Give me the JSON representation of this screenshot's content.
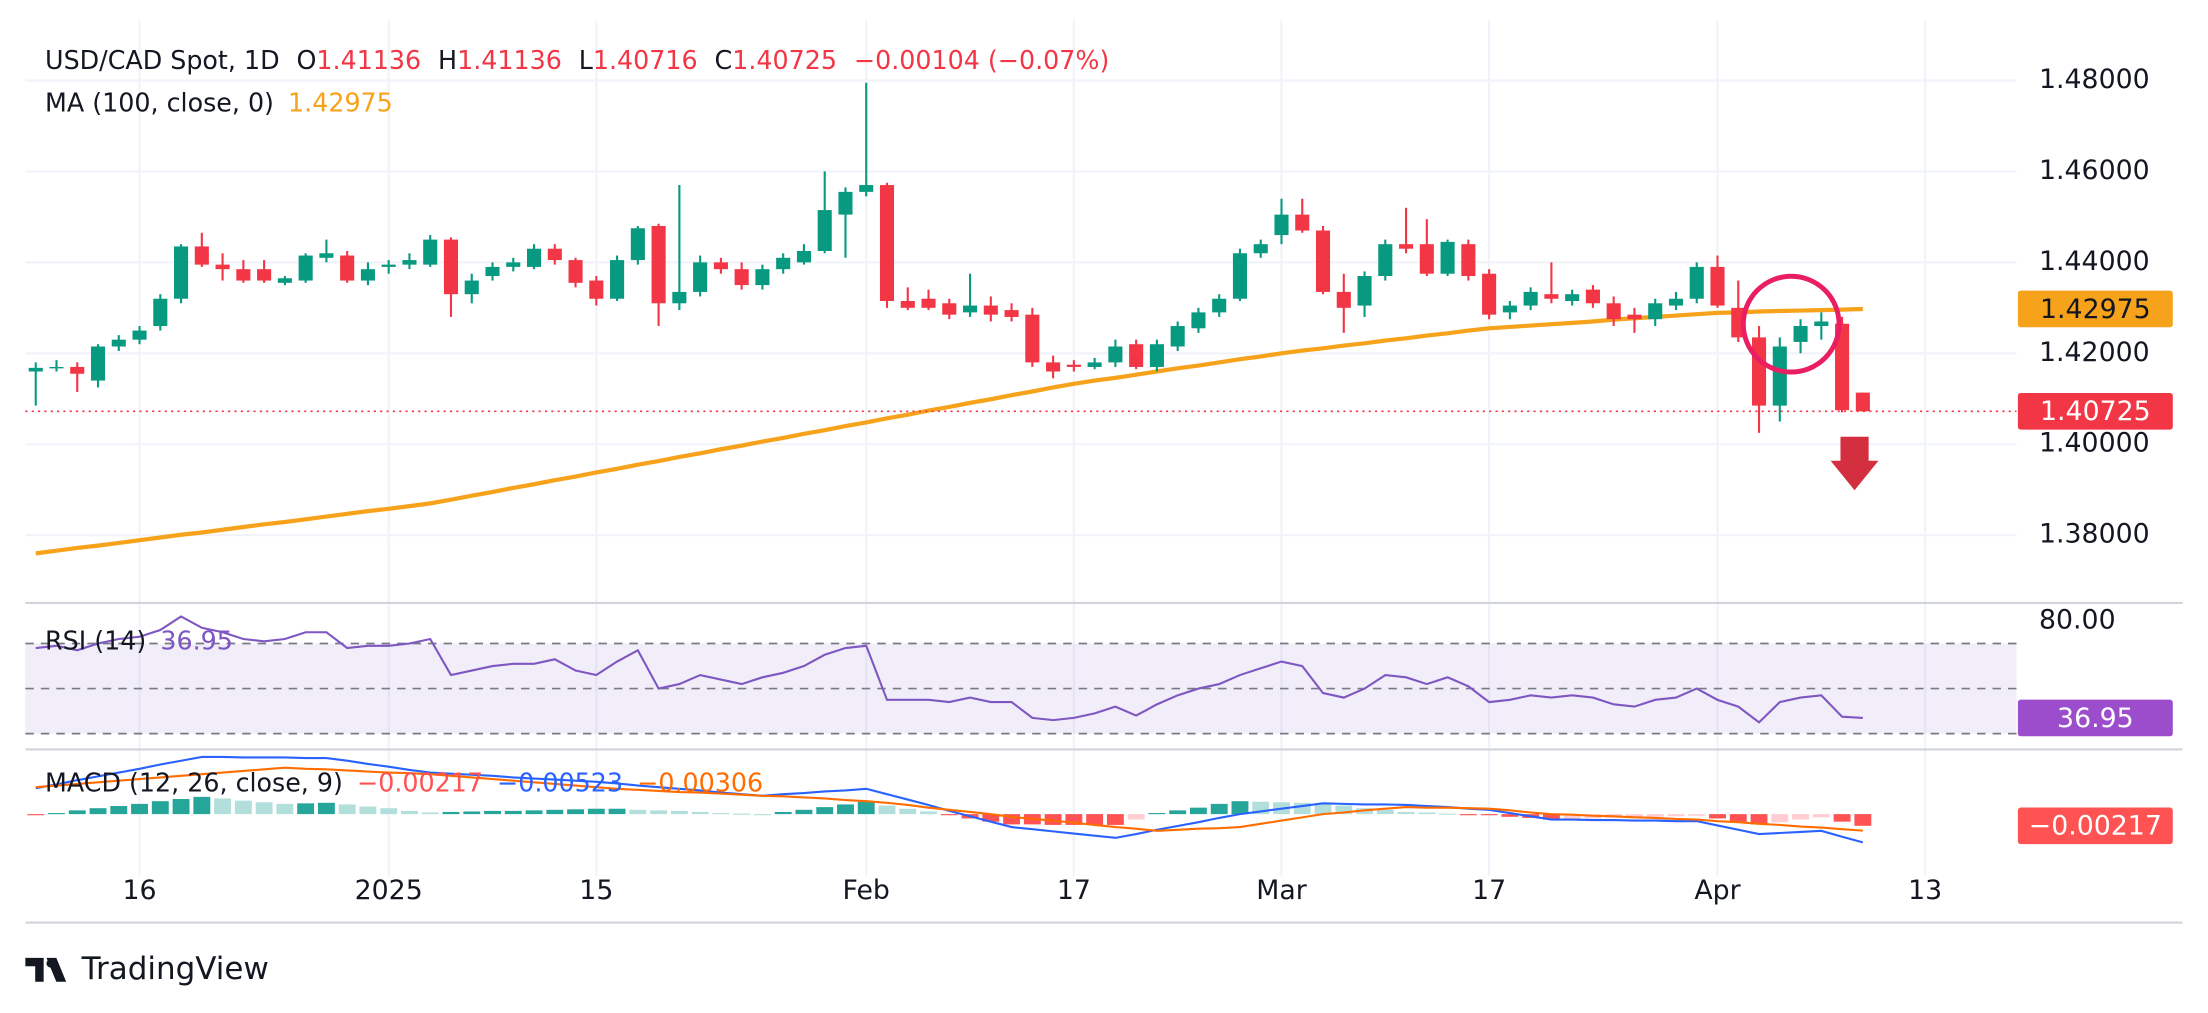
{
  "chart_data": [
    {
      "type": "candlestick",
      "title": "USD/CAD Spot, 1D",
      "ohlc_labels": [
        "O",
        "H",
        "L",
        "C"
      ],
      "change_label": "−0.00104 (−0.07%)",
      "up_color": "#089981",
      "down_color": "#f23645",
      "open": [
        1.416,
        1.4168,
        1.417,
        1.414,
        1.4215,
        1.423,
        1.426,
        1.432,
        1.4435,
        1.4395,
        1.4385,
        1.4385,
        1.4355,
        1.436,
        1.441,
        1.4415,
        1.436,
        1.439,
        1.4395,
        1.4395,
        1.445,
        1.433,
        1.437,
        1.439,
        1.439,
        1.443,
        1.4405,
        1.436,
        1.432,
        1.4405,
        1.448,
        1.431,
        1.4335,
        1.44,
        1.4385,
        1.435,
        1.4385,
        1.44,
        1.4425,
        1.4505,
        1.4555,
        1.457,
        1.4315,
        1.432,
        1.431,
        1.429,
        1.4305,
        1.4295,
        1.4285,
        1.418,
        1.4175,
        1.417,
        1.418,
        1.422,
        1.417,
        1.4215,
        1.4255,
        1.429,
        1.432,
        1.442,
        1.446,
        1.4505,
        1.447,
        1.4335,
        1.4305,
        1.437,
        1.444,
        1.444,
        1.4375,
        1.444,
        1.4375,
        1.429,
        1.4305,
        1.433,
        1.4315,
        1.434,
        1.431,
        1.4285,
        1.4275,
        1.4305,
        1.432,
        1.439,
        1.43,
        1.4235,
        1.4085,
        1.4225,
        1.426,
        1.4265,
        1.41136
      ],
      "high": [
        1.418,
        1.4185,
        1.418,
        1.422,
        1.424,
        1.426,
        1.433,
        1.444,
        1.4465,
        1.442,
        1.4405,
        1.4405,
        1.437,
        1.442,
        1.445,
        1.4425,
        1.44,
        1.4405,
        1.442,
        1.446,
        1.4455,
        1.4375,
        1.44,
        1.441,
        1.444,
        1.444,
        1.441,
        1.437,
        1.4415,
        1.448,
        1.4485,
        1.457,
        1.4415,
        1.441,
        1.44,
        1.4395,
        1.442,
        1.444,
        1.46,
        1.4565,
        1.4795,
        1.4575,
        1.4345,
        1.434,
        1.432,
        1.4375,
        1.4325,
        1.431,
        1.43,
        1.4195,
        1.4185,
        1.419,
        1.423,
        1.423,
        1.423,
        1.427,
        1.43,
        1.433,
        1.443,
        1.445,
        1.454,
        1.454,
        1.448,
        1.4375,
        1.438,
        1.445,
        1.452,
        1.4495,
        1.445,
        1.445,
        1.4385,
        1.4315,
        1.4345,
        1.44,
        1.434,
        1.435,
        1.4325,
        1.43,
        1.432,
        1.4335,
        1.44,
        1.4415,
        1.436,
        1.426,
        1.4235,
        1.4275,
        1.429,
        1.428,
        1.41136
      ],
      "low": [
        1.4085,
        1.416,
        1.4115,
        1.4125,
        1.4205,
        1.422,
        1.425,
        1.431,
        1.439,
        1.436,
        1.4355,
        1.4355,
        1.435,
        1.4355,
        1.44,
        1.4355,
        1.435,
        1.4375,
        1.4385,
        1.439,
        1.428,
        1.431,
        1.436,
        1.438,
        1.4385,
        1.4395,
        1.4345,
        1.4305,
        1.4315,
        1.4395,
        1.426,
        1.4295,
        1.4325,
        1.4375,
        1.434,
        1.434,
        1.4375,
        1.4395,
        1.442,
        1.441,
        1.4545,
        1.43,
        1.4295,
        1.4295,
        1.4275,
        1.428,
        1.427,
        1.427,
        1.417,
        1.4145,
        1.416,
        1.4165,
        1.417,
        1.4165,
        1.416,
        1.4205,
        1.4245,
        1.428,
        1.4315,
        1.441,
        1.444,
        1.4465,
        1.433,
        1.4245,
        1.428,
        1.436,
        1.442,
        1.437,
        1.437,
        1.436,
        1.4275,
        1.4275,
        1.4295,
        1.431,
        1.4305,
        1.43,
        1.426,
        1.4245,
        1.426,
        1.4295,
        1.431,
        1.43,
        1.4225,
        1.4025,
        1.405,
        1.42,
        1.423,
        1.407,
        1.40716
      ],
      "close": [
        1.4168,
        1.417,
        1.4155,
        1.4215,
        1.423,
        1.425,
        1.432,
        1.4435,
        1.4395,
        1.4385,
        1.436,
        1.436,
        1.4365,
        1.4415,
        1.442,
        1.436,
        1.4385,
        1.4395,
        1.4405,
        1.445,
        1.433,
        1.436,
        1.439,
        1.44,
        1.443,
        1.4405,
        1.4355,
        1.432,
        1.4405,
        1.4475,
        1.431,
        1.4335,
        1.44,
        1.4385,
        1.435,
        1.4385,
        1.441,
        1.4425,
        1.4515,
        1.4555,
        1.457,
        1.4315,
        1.43,
        1.43,
        1.4285,
        1.4305,
        1.4285,
        1.428,
        1.418,
        1.416,
        1.417,
        1.418,
        1.4215,
        1.417,
        1.422,
        1.426,
        1.429,
        1.432,
        1.442,
        1.444,
        1.4505,
        1.447,
        1.4335,
        1.43,
        1.437,
        1.444,
        1.443,
        1.4375,
        1.4445,
        1.437,
        1.4285,
        1.4305,
        1.4335,
        1.432,
        1.433,
        1.431,
        1.4275,
        1.4275,
        1.431,
        1.432,
        1.439,
        1.4305,
        1.4235,
        1.4085,
        1.4215,
        1.426,
        1.427,
        1.4075,
        1.40725
      ],
      "ma": {
        "name": "MA (100, close, 0)",
        "color": "#f7a21b",
        "values": [
          1.376,
          1.3766,
          1.3772,
          1.3777,
          1.3783,
          1.3789,
          1.3795,
          1.3801,
          1.3806,
          1.3812,
          1.3818,
          1.3824,
          1.3829,
          1.3835,
          1.3841,
          1.3847,
          1.3853,
          1.3858,
          1.3864,
          1.387,
          1.3878,
          1.3887,
          1.3895,
          1.3904,
          1.3912,
          1.3921,
          1.3929,
          1.3938,
          1.3946,
          1.3955,
          1.3963,
          1.3972,
          1.398,
          1.3989,
          1.3997,
          1.4006,
          1.4014,
          1.4023,
          1.4031,
          1.404,
          1.4048,
          1.4057,
          1.4065,
          1.4074,
          1.4082,
          1.4091,
          1.4099,
          1.4108,
          1.4116,
          1.4125,
          1.4133,
          1.414,
          1.4146,
          1.4153,
          1.416,
          1.4167,
          1.4173,
          1.418,
          1.4187,
          1.4193,
          1.42,
          1.4206,
          1.4211,
          1.4217,
          1.4222,
          1.4228,
          1.4233,
          1.4239,
          1.4244,
          1.425,
          1.4255,
          1.4258,
          1.4261,
          1.4264,
          1.4267,
          1.427,
          1.4274,
          1.4277,
          1.428,
          1.4283,
          1.4286,
          1.4289,
          1.429,
          1.4292,
          1.4293,
          1.4294,
          1.4295,
          1.4296,
          1.42975
        ]
      },
      "xlim": [
        -0.5,
        95.4
      ],
      "xticks": [
        {
          "value": 5,
          "label": "16"
        },
        {
          "value": 17,
          "label": "2025"
        },
        {
          "value": 27,
          "label": "15"
        },
        {
          "value": 40,
          "label": "Feb"
        },
        {
          "value": 50,
          "label": "17"
        },
        {
          "value": 60,
          "label": "Mar"
        },
        {
          "value": 70,
          "label": "17"
        },
        {
          "value": 81,
          "label": "Apr"
        },
        {
          "value": 91,
          "label": "13"
        }
      ],
      "ylim": [
        1.3651,
        1.4933
      ],
      "yticks": [
        {
          "value": 1.38,
          "label": "1.38000"
        },
        {
          "value": 1.4,
          "label": "1.40000"
        },
        {
          "value": 1.42,
          "label": "1.42000"
        },
        {
          "value": 1.44,
          "label": "1.44000"
        },
        {
          "value": 1.46,
          "label": "1.46000"
        },
        {
          "value": 1.48,
          "label": "1.48000"
        }
      ],
      "grid": true
    },
    {
      "type": "line",
      "title": "RSI (14)",
      "series": [
        {
          "color": "#7e57c2",
          "values": [
            68,
            69,
            67,
            70,
            72,
            73,
            76,
            82,
            77,
            75,
            72,
            71,
            72,
            75,
            75,
            68,
            69,
            69,
            70,
            72,
            56,
            58,
            60,
            61,
            61,
            63,
            58,
            56,
            62,
            67,
            50,
            52,
            56,
            54,
            52,
            55,
            57,
            60,
            65,
            68,
            69,
            45,
            45,
            45,
            44,
            46,
            44,
            44,
            37,
            36,
            37,
            39,
            42,
            38,
            43,
            47,
            50,
            52,
            56,
            59,
            62,
            60,
            48,
            46,
            50,
            56,
            55,
            52,
            55,
            51,
            44,
            45,
            47,
            46,
            47,
            46,
            43,
            42,
            45,
            46,
            50,
            45,
            42,
            35,
            44,
            46,
            47,
            37.5,
            36.95
          ]
        }
      ],
      "box_color": "#9c4dcc",
      "levels": [
        70,
        50,
        30
      ],
      "xlim": [
        -0.5,
        95.4
      ],
      "ylim": [
        23,
        88
      ],
      "yticks": [
        {
          "value": 80,
          "label": "80.00"
        }
      ]
    },
    {
      "type": "macd",
      "title": "MACD (12, 26, close, 9)",
      "histogram": {
        "colors": [
          "#26a69a",
          "#b2dfdb",
          "#ff5252",
          "#ffcdd2"
        ],
        "values": [
          -0.0002,
          0.0002,
          0.0007,
          0.0011,
          0.0015,
          0.0019,
          0.0024,
          0.0028,
          0.0032,
          0.0029,
          0.0025,
          0.0022,
          0.0019,
          0.002,
          0.0021,
          0.0018,
          0.0014,
          0.0011,
          0.0006,
          0.0003,
          0.0004,
          0.0005,
          0.0006,
          0.0006,
          0.0007,
          0.0008,
          0.0009,
          0.001,
          0.001,
          0.0008,
          0.0007,
          0.0006,
          0.0004,
          0.0002,
          0.0001,
          0.0,
          0.0004,
          0.0008,
          0.0013,
          0.0018,
          0.0023,
          0.0016,
          0.001,
          0.0005,
          -0.0002,
          -0.0008,
          -0.0014,
          -0.0019,
          -0.0019,
          -0.002,
          -0.002,
          -0.002,
          -0.002,
          -0.001,
          0.0002,
          0.0007,
          0.0012,
          0.0019,
          0.0024,
          0.0023,
          0.0022,
          0.0021,
          0.002,
          0.0016,
          0.0011,
          0.0008,
          0.0004,
          0.0003,
          0.0001,
          -0.0001,
          -0.0002,
          -0.0005,
          -0.0007,
          -0.001,
          -0.0009,
          -0.0008,
          -0.0007,
          -0.0006,
          -0.0005,
          -0.0004,
          -0.0003,
          -0.0008,
          -0.0014,
          -0.0019,
          -0.0015,
          -0.001,
          -0.0006,
          -0.0014,
          -0.00217
        ],
        "value_labels": {
          "88": "−0.00217"
        }
      },
      "macd": {
        "color": "#2962ff",
        "values": [
          0.0048,
          0.0055,
          0.0063,
          0.007,
          0.0077,
          0.0084,
          0.0092,
          0.0099,
          0.0106,
          0.0106,
          0.0105,
          0.0105,
          0.0105,
          0.0104,
          0.0104,
          0.0099,
          0.0093,
          0.0088,
          0.0082,
          0.0077,
          0.0075,
          0.0073,
          0.0071,
          0.0068,
          0.0066,
          0.0064,
          0.0062,
          0.006,
          0.0057,
          0.0053,
          0.005,
          0.0047,
          0.0044,
          0.004,
          0.0037,
          0.0034,
          0.0037,
          0.0039,
          0.0042,
          0.0044,
          0.0047,
          0.0037,
          0.0027,
          0.0017,
          0.0006,
          -0.0004,
          -0.0014,
          -0.0024,
          -0.0028,
          -0.0032,
          -0.0036,
          -0.004,
          -0.0044,
          -0.0037,
          -0.0029,
          -0.0022,
          -0.0015,
          -0.0007,
          0.0,
          0.0005,
          0.001,
          0.0015,
          0.002,
          0.0019,
          0.0018,
          0.0018,
          0.0017,
          0.0015,
          0.0013,
          0.001,
          0.0008,
          0.0002,
          -0.0004,
          -0.001,
          -0.001,
          -0.0011,
          -0.0011,
          -0.0012,
          -0.0012,
          -0.0013,
          -0.0013,
          -0.0021,
          -0.0029,
          -0.0037,
          -0.0035,
          -0.0033,
          -0.0031,
          -0.0042,
          -0.00523
        ],
        "value_labels": {
          "88": "−0.00523"
        }
      },
      "signal": {
        "color": "#ff6d00",
        "values": [
          0.005,
          0.0053,
          0.0056,
          0.0059,
          0.0062,
          0.0065,
          0.0068,
          0.0071,
          0.0074,
          0.0077,
          0.008,
          0.0083,
          0.0086,
          0.0084,
          0.0083,
          0.0081,
          0.0079,
          0.0077,
          0.0076,
          0.0074,
          0.0071,
          0.0068,
          0.0065,
          0.0062,
          0.0059,
          0.0056,
          0.0053,
          0.005,
          0.0047,
          0.0045,
          0.0043,
          0.0041,
          0.004,
          0.0038,
          0.0036,
          0.0034,
          0.0033,
          0.0031,
          0.0029,
          0.0026,
          0.0024,
          0.0021,
          0.0017,
          0.0012,
          0.0008,
          0.0004,
          0.0,
          -0.0005,
          -0.0009,
          -0.0012,
          -0.0016,
          -0.002,
          -0.0024,
          -0.0027,
          -0.0031,
          -0.0029,
          -0.0027,
          -0.0026,
          -0.0024,
          -0.0018,
          -0.0012,
          -0.0006,
          0.0,
          0.0003,
          0.0007,
          0.001,
          0.0013,
          0.0012,
          0.0012,
          0.0011,
          0.001,
          0.0007,
          0.0003,
          0.0,
          -0.0001,
          -0.0003,
          -0.0004,
          -0.0006,
          -0.0007,
          -0.0009,
          -0.001,
          -0.0013,
          -0.0015,
          -0.0018,
          -0.002,
          -0.0023,
          -0.0025,
          -0.0028,
          -0.00306
        ],
        "value_labels": {
          "88": "−0.00306"
        }
      },
      "xlim": [
        -0.5,
        95.4
      ],
      "ylim": [
        -0.0115,
        0.012
      ]
    }
  ],
  "footer": {
    "brand": "TradingView"
  }
}
